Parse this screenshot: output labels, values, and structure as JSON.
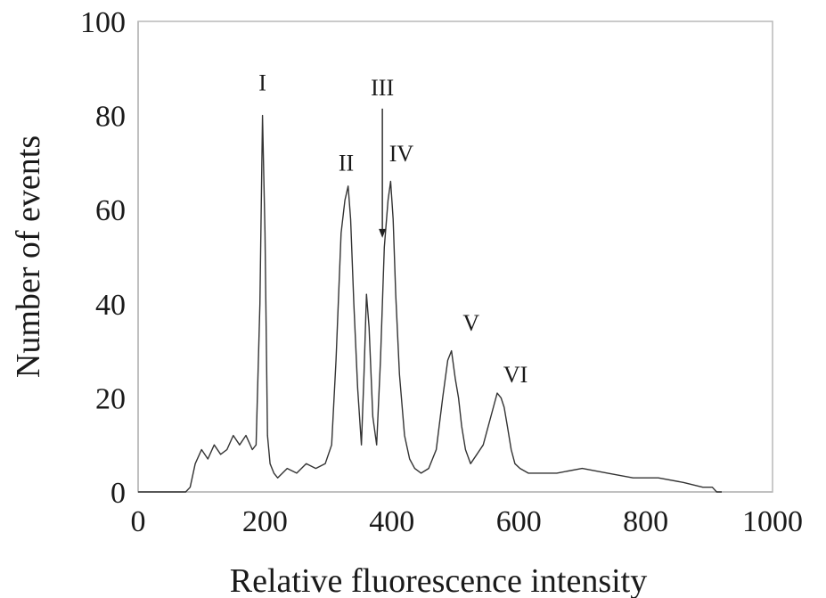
{
  "chart_data": {
    "type": "line",
    "title": "",
    "xlabel": "Relative fluorescence intensity",
    "ylabel": "Number of events",
    "xlim": [
      0,
      1000
    ],
    "ylim": [
      0,
      100
    ],
    "x_ticks": [
      "0",
      "200",
      "400",
      "600",
      "800",
      "1000"
    ],
    "y_ticks": [
      "0",
      "20",
      "40",
      "60",
      "80",
      "100"
    ],
    "grid": false,
    "legend": "none",
    "line_color": "#333333",
    "series": [
      {
        "x": [
          0,
          40,
          75,
          82,
          90,
          100,
          110,
          120,
          130,
          140,
          150,
          160,
          170,
          180,
          186,
          192,
          196,
          200,
          204,
          208,
          214,
          220,
          235,
          250,
          265,
          280,
          295,
          305,
          312,
          320,
          326,
          331,
          335,
          340,
          346,
          352,
          356,
          360,
          364,
          370,
          376,
          382,
          388,
          394,
          398,
          402,
          406,
          412,
          420,
          428,
          436,
          446,
          458,
          470,
          480,
          488,
          494,
          500,
          505,
          510,
          516,
          524,
          534,
          544,
          552,
          560,
          566,
          572,
          577,
          582,
          588,
          594,
          602,
          615,
          630,
          660,
          700,
          740,
          780,
          820,
          860,
          890,
          905,
          912,
          920
        ],
        "y": [
          0,
          0,
          0,
          1,
          6,
          9,
          7,
          10,
          8,
          9,
          12,
          10,
          12,
          9,
          10,
          40,
          80,
          55,
          12,
          6,
          4,
          3,
          5,
          4,
          6,
          5,
          6,
          10,
          28,
          55,
          62,
          65,
          58,
          40,
          22,
          10,
          25,
          42,
          35,
          16,
          10,
          28,
          52,
          62,
          66,
          58,
          42,
          25,
          12,
          7,
          5,
          4,
          5,
          9,
          20,
          28,
          30,
          24,
          20,
          14,
          9,
          6,
          8,
          10,
          14,
          18,
          21,
          20,
          18,
          14,
          9,
          6,
          5,
          4,
          4,
          4,
          5,
          4,
          3,
          3,
          2,
          1,
          1,
          0,
          0
        ]
      }
    ],
    "annotations": [
      {
        "label": "I",
        "x": 196,
        "y": 87
      },
      {
        "label": "II",
        "x": 328,
        "y": 70
      },
      {
        "label": "III",
        "x": 385,
        "y": 86,
        "arrow_to_y": 54
      },
      {
        "label": "IV",
        "x": 415,
        "y": 72
      },
      {
        "label": "V",
        "x": 525,
        "y": 36
      },
      {
        "label": "VI",
        "x": 595,
        "y": 25
      }
    ]
  }
}
